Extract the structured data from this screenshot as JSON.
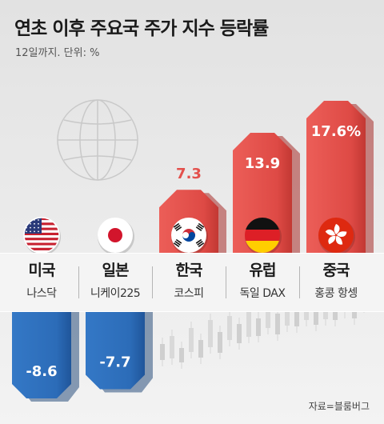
{
  "header": {
    "title": "연초 이후 주요국 주가 지수 등락률",
    "subtitle": "12일까지. 단위: %"
  },
  "source": "자료=블룸버그",
  "colors": {
    "positive": "#e3504c",
    "positive_label": "#e3504c",
    "negative": "#2c6cb8",
    "value_label_on_bar": "#ffffff"
  },
  "chart_data": {
    "type": "bar",
    "title": "연초 이후 주요국 주가 지수 등락률",
    "subtitle": "12일까지. 단위: %",
    "unit": "%",
    "categories": [
      "미국",
      "일본",
      "한국",
      "유럽",
      "중국"
    ],
    "indices": [
      "나스닥",
      "니케이225",
      "코스피",
      "독일 DAX",
      "홍콩 항셍"
    ],
    "flags": [
      "us-flag-icon",
      "japan-flag-icon",
      "korea-flag-icon",
      "germany-flag-icon",
      "hongkong-flag-icon"
    ],
    "values": [
      -8.6,
      -7.7,
      7.3,
      13.9,
      17.6
    ],
    "value_labels": [
      "-8.6",
      "-7.7",
      "7.3",
      "13.9",
      "17.6%"
    ],
    "grid": false
  }
}
